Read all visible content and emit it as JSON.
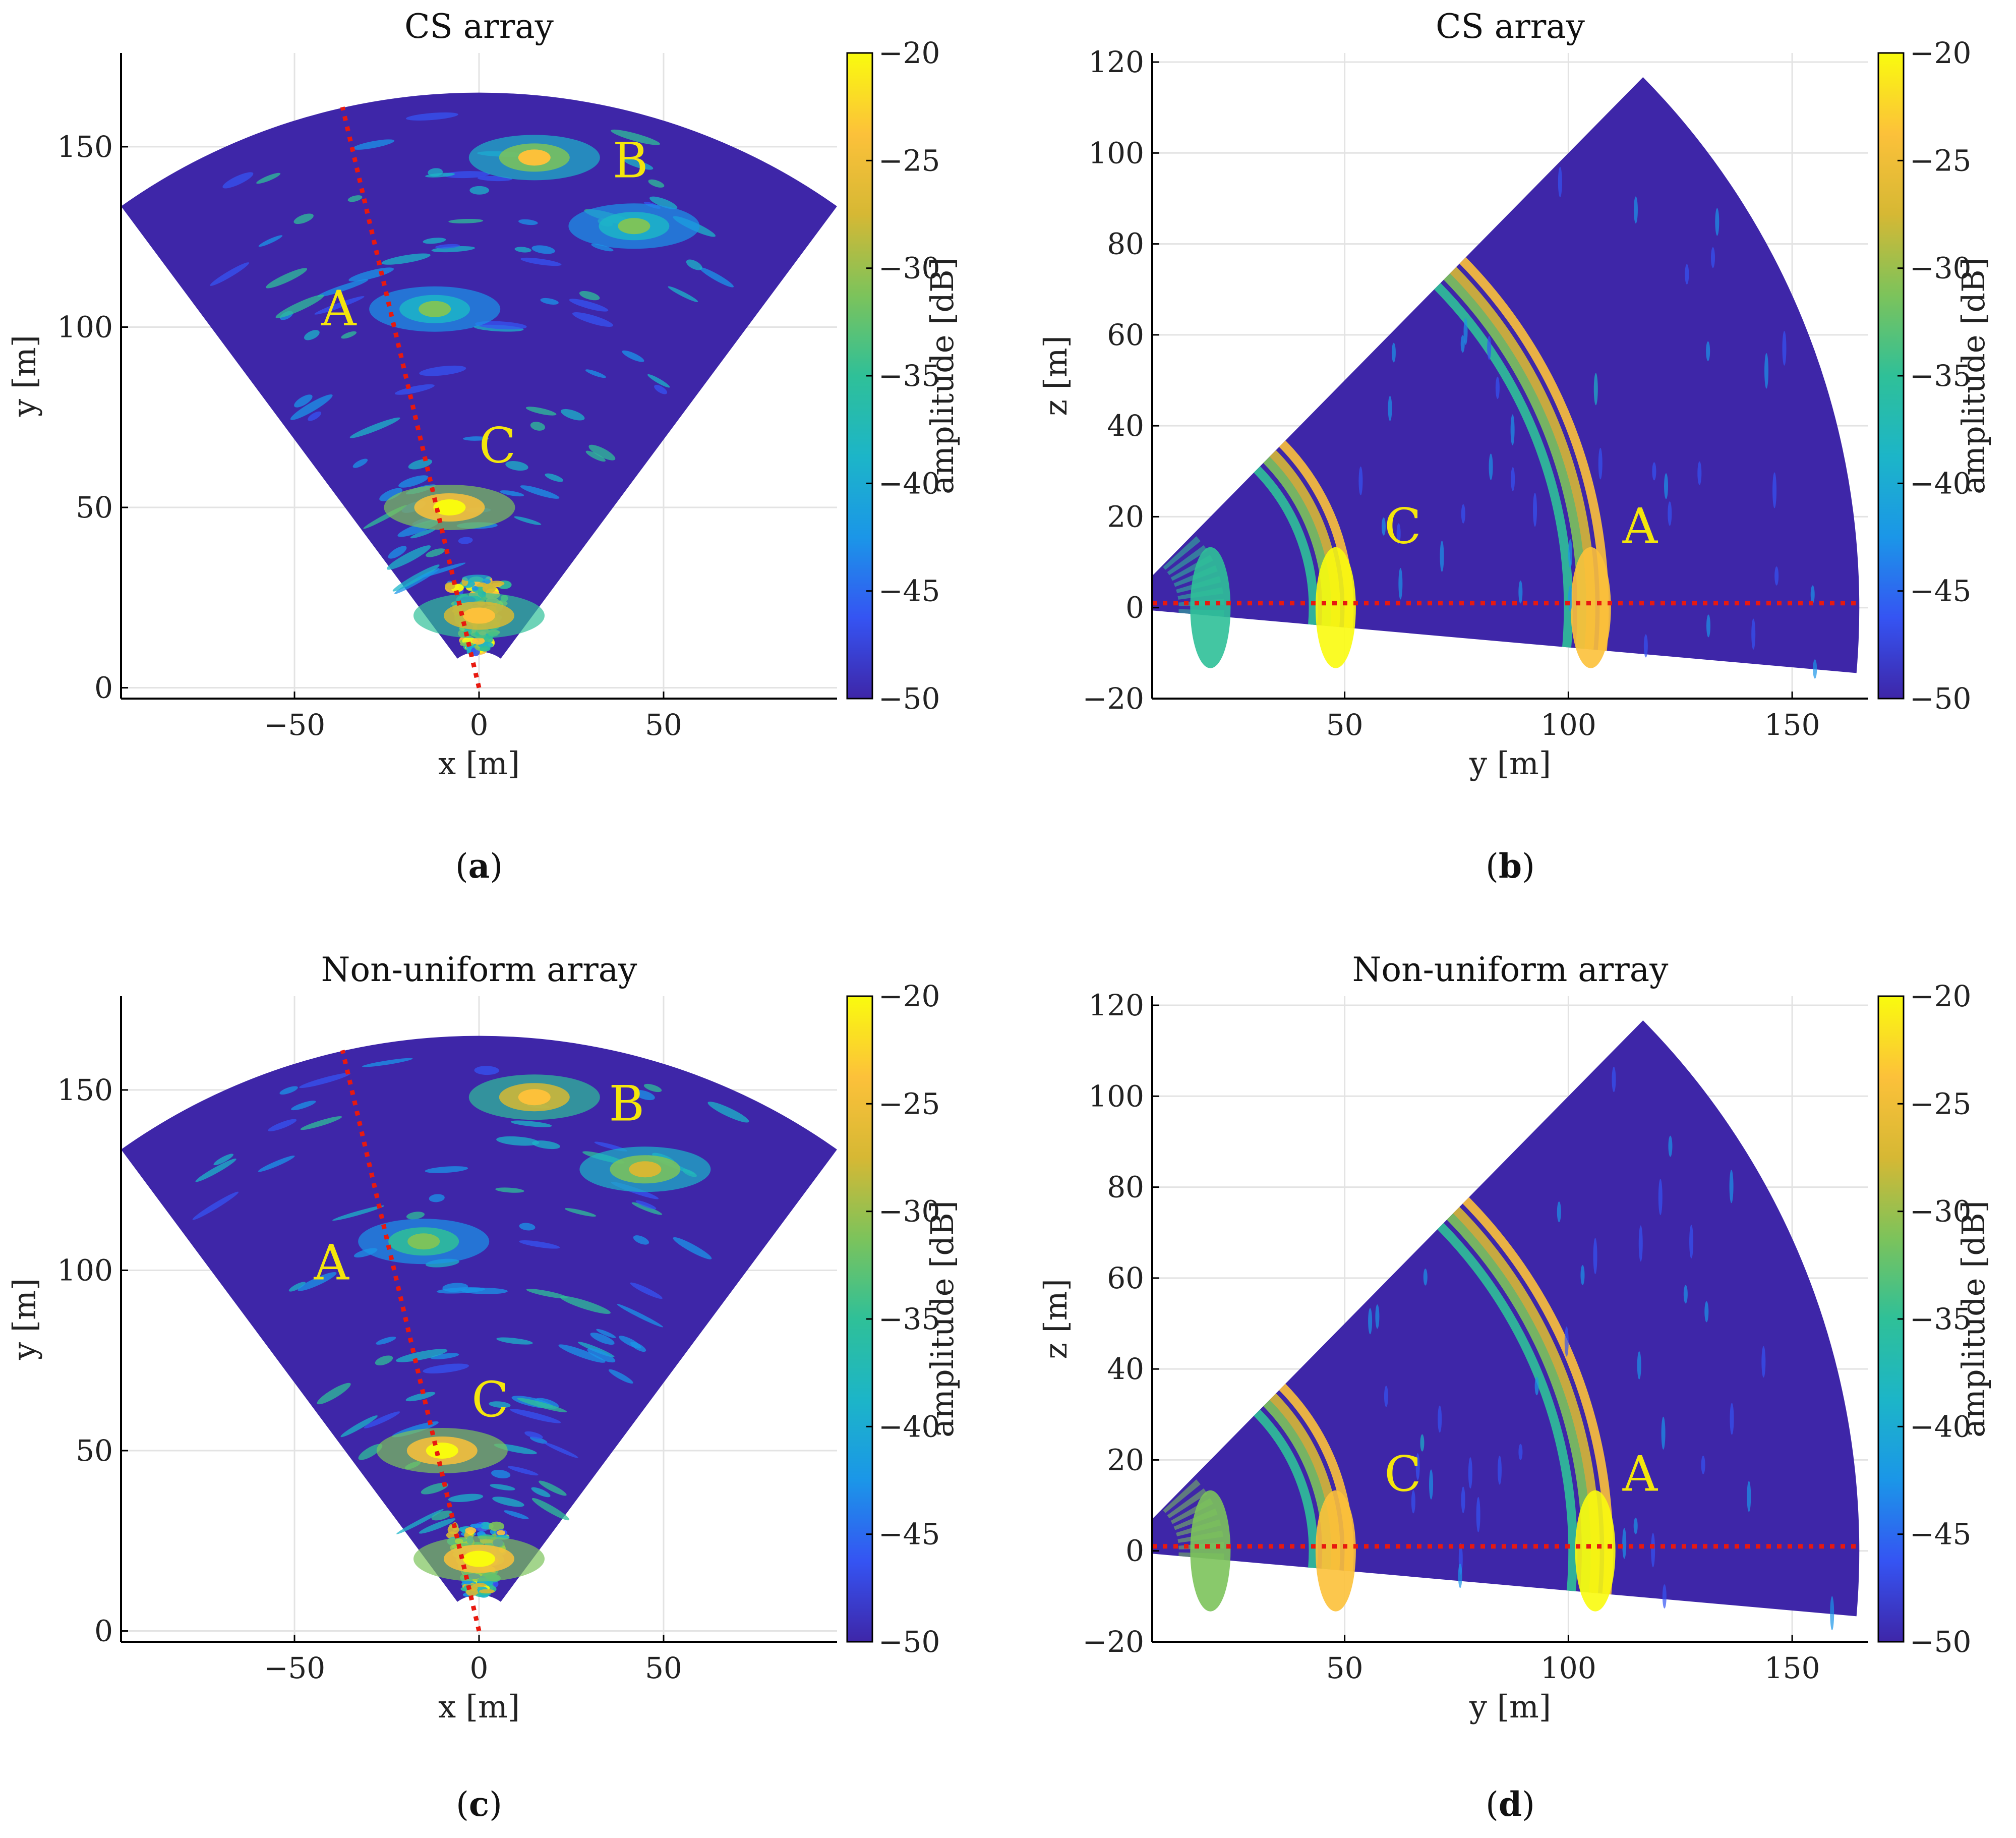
{
  "figure": {
    "colorscale": [
      "#3e26a8",
      "#3554f3",
      "#1b96e8",
      "#1cb5c8",
      "#2fc098",
      "#7cc35b",
      "#d6b834",
      "#fcc13a",
      "#f9fb0e"
    ],
    "colors": {
      "sector_background": "#3e26a8",
      "reference_line": "#e8190f",
      "target_label": "#f4e60c",
      "grid": "#e3e3e3"
    }
  },
  "chart_data": [
    {
      "type": "heatmap",
      "panel": "a",
      "caption": "a",
      "title": "CS array",
      "xlabel": "x [m]",
      "ylabel": "y [m]",
      "xlim": [
        -97,
        97
      ],
      "ylim": [
        -3,
        176
      ],
      "xticks": [
        -50,
        0,
        50
      ],
      "yticks": [
        0,
        50,
        100,
        150
      ],
      "grid": true,
      "colorbar": {
        "label": "amplitude [dB]",
        "range": [
          -50,
          -20
        ],
        "ticks": [
          -20,
          -25,
          -30,
          -35,
          -40,
          -45,
          -50
        ]
      },
      "sector": {
        "radius_min": 10,
        "radius_max": 165,
        "azimuth_deg": [
          -36,
          36
        ]
      },
      "reference_line": {
        "style": "dotted",
        "x": [
          0,
          -37
        ],
        "y": [
          0,
          161
        ]
      },
      "hotspots": [
        {
          "x": -8,
          "y": 50,
          "level": -20
        },
        {
          "x": 0,
          "y": 20,
          "level": -22
        },
        {
          "x": -12,
          "y": 105,
          "level": -32
        },
        {
          "x": 15,
          "y": 147,
          "level": -25
        },
        {
          "x": 42,
          "y": 128,
          "level": -32
        }
      ],
      "annotations": [
        {
          "text": "A",
          "x": -38,
          "y": 104
        },
        {
          "text": "B",
          "x": 41,
          "y": 145
        },
        {
          "text": "C",
          "x": 5,
          "y": 66
        }
      ]
    },
    {
      "type": "heatmap",
      "panel": "b",
      "caption": "b",
      "title": "CS array",
      "xlabel": "y [m]",
      "ylabel": "z [m]",
      "xlim": [
        7,
        167
      ],
      "ylim": [
        -20,
        122
      ],
      "xticks": [
        50,
        100,
        150
      ],
      "yticks": [
        -20,
        0,
        20,
        40,
        60,
        80,
        100,
        120
      ],
      "grid": true,
      "colorbar": {
        "label": "amplitude [dB]",
        "range": [
          -50,
          -20
        ],
        "ticks": [
          -20,
          -25,
          -30,
          -35,
          -40,
          -45,
          -50
        ]
      },
      "sector": {
        "radius_min": 7,
        "radius_max": 165,
        "elevation_deg": [
          -5,
          45
        ]
      },
      "reference_line": {
        "style": "dotted",
        "x": [
          7,
          165
        ],
        "y": [
          1,
          1
        ]
      },
      "hotspots": [
        {
          "range": 105,
          "level": -22
        },
        {
          "range": 48,
          "level": -20
        },
        {
          "range": 20,
          "level": -35
        }
      ],
      "annotations": [
        {
          "text": "A",
          "x": 116,
          "y": 17
        },
        {
          "text": "C",
          "x": 63,
          "y": 17
        }
      ]
    },
    {
      "type": "heatmap",
      "panel": "c",
      "caption": "c",
      "title": "Non-uniform array",
      "xlabel": "x [m]",
      "ylabel": "y [m]",
      "xlim": [
        -97,
        97
      ],
      "ylim": [
        -3,
        176
      ],
      "xticks": [
        -50,
        0,
        50
      ],
      "yticks": [
        0,
        50,
        100,
        150
      ],
      "grid": true,
      "colorbar": {
        "label": "amplitude [dB]",
        "range": [
          -50,
          -20
        ],
        "ticks": [
          -20,
          -25,
          -30,
          -35,
          -40,
          -45,
          -50
        ]
      },
      "sector": {
        "radius_min": 10,
        "radius_max": 165,
        "azimuth_deg": [
          -36,
          36
        ]
      },
      "reference_line": {
        "style": "dotted",
        "x": [
          0,
          -37
        ],
        "y": [
          0,
          161
        ]
      },
      "hotspots": [
        {
          "x": -10,
          "y": 50,
          "level": -20
        },
        {
          "x": 0,
          "y": 20,
          "level": -20
        },
        {
          "x": -15,
          "y": 108,
          "level": -30
        },
        {
          "x": 15,
          "y": 148,
          "level": -22
        },
        {
          "x": 45,
          "y": 128,
          "level": -28
        }
      ],
      "annotations": [
        {
          "text": "A",
          "x": -40,
          "y": 101
        },
        {
          "text": "B",
          "x": 40,
          "y": 145
        },
        {
          "text": "C",
          "x": 3,
          "y": 63
        }
      ]
    },
    {
      "type": "heatmap",
      "panel": "d",
      "caption": "d",
      "title": "Non-uniform array",
      "xlabel": "y [m]",
      "ylabel": "z [m]",
      "xlim": [
        7,
        167
      ],
      "ylim": [
        -20,
        122
      ],
      "xticks": [
        50,
        100,
        150
      ],
      "yticks": [
        -20,
        0,
        20,
        40,
        60,
        80,
        100,
        120
      ],
      "grid": true,
      "colorbar": {
        "label": "amplitude [dB]",
        "range": [
          -50,
          -20
        ],
        "ticks": [
          -20,
          -25,
          -30,
          -35,
          -40,
          -45,
          -50
        ]
      },
      "sector": {
        "radius_min": 7,
        "radius_max": 165,
        "elevation_deg": [
          -5,
          45
        ]
      },
      "reference_line": {
        "style": "dotted",
        "x": [
          7,
          165
        ],
        "y": [
          1,
          1
        ]
      },
      "hotspots": [
        {
          "range": 106,
          "level": -20
        },
        {
          "range": 48,
          "level": -22
        },
        {
          "range": 20,
          "level": -30
        }
      ],
      "annotations": [
        {
          "text": "A",
          "x": 116,
          "y": 16
        },
        {
          "text": "C",
          "x": 63,
          "y": 16
        }
      ]
    }
  ]
}
